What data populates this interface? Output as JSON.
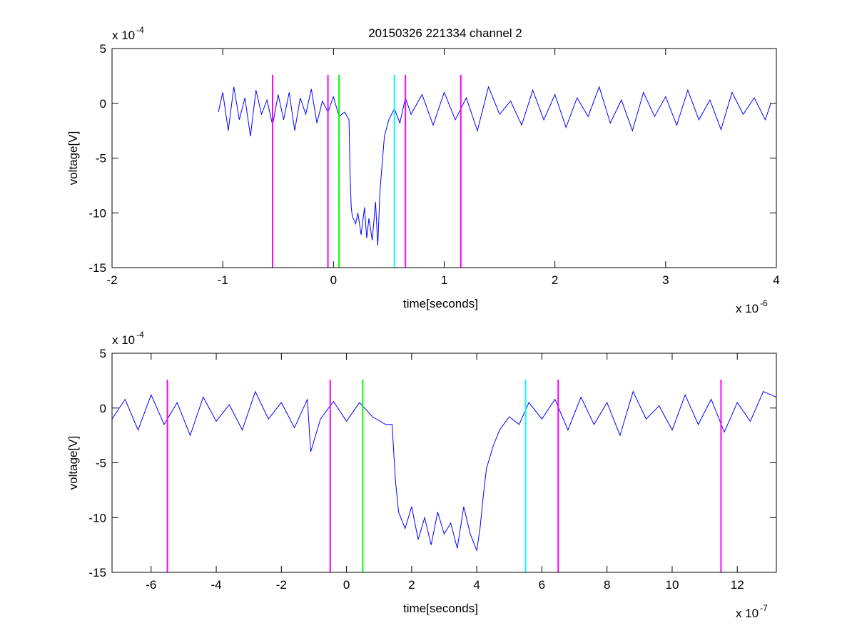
{
  "title": "20150326 221334 channel 2",
  "colors": {
    "trace": "#0000ff",
    "magenta": "#ff00ff",
    "green": "#00ff00",
    "cyan": "#00ffff",
    "axes": "#000000"
  },
  "chart_data": [
    {
      "type": "line",
      "title": "20150326 221334 channel 2",
      "xlabel": "time[seconds]",
      "ylabel": "voltage[V]",
      "x_exponent_label": "x 10",
      "x_exponent": "-6",
      "y_exponent_label": "x 10",
      "y_exponent": "-4",
      "xlim": [
        -2,
        4
      ],
      "ylim": [
        -15,
        5
      ],
      "xticks": [
        -2,
        -1,
        0,
        1,
        2,
        3,
        4
      ],
      "yticks": [
        5,
        0,
        -5,
        -10,
        -15
      ],
      "grid": false,
      "series": [
        {
          "x": [
            -1.04,
            -1.0,
            -0.95,
            -0.9,
            -0.85,
            -0.8,
            -0.75,
            -0.7,
            -0.65,
            -0.6,
            -0.55,
            -0.5,
            -0.45,
            -0.4,
            -0.35,
            -0.3,
            -0.25,
            -0.2,
            -0.15,
            -0.1,
            -0.05,
            0.0,
            0.05,
            0.1,
            0.14,
            0.15,
            0.16,
            0.17,
            0.2,
            0.22,
            0.25,
            0.28,
            0.3,
            0.32,
            0.35,
            0.38,
            0.4,
            0.42,
            0.44,
            0.46,
            0.5,
            0.55,
            0.6,
            0.65,
            0.7,
            0.8,
            0.9,
            1.0,
            1.1,
            1.2,
            1.3,
            1.4,
            1.5,
            1.6,
            1.7,
            1.8,
            1.9,
            2.0,
            2.1,
            2.2,
            2.3,
            2.4,
            2.5,
            2.6,
            2.7,
            2.8,
            2.9,
            3.0,
            3.1,
            3.2,
            3.3,
            3.4,
            3.5,
            3.6,
            3.7,
            3.8,
            3.9,
            3.95
          ],
          "y": [
            -0.8,
            1.0,
            -2.5,
            1.5,
            -1.5,
            0.5,
            -3.0,
            1.2,
            -1.0,
            0.3,
            -2.0,
            0.8,
            -1.5,
            1.0,
            -2.5,
            0.5,
            -1.0,
            1.3,
            -1.8,
            0.2,
            -0.8,
            0.6,
            -1.2,
            -0.8,
            -1.5,
            -6.5,
            -9.5,
            -10.3,
            -11.0,
            -10.0,
            -12.0,
            -9.5,
            -12.3,
            -10.5,
            -12.5,
            -9.0,
            -13.0,
            -8.0,
            -5.5,
            -3.0,
            -1.5,
            -0.5,
            -1.8,
            0.5,
            -1.0,
            0.8,
            -2.0,
            1.0,
            -1.5,
            0.5,
            -2.5,
            1.5,
            -1.0,
            0.2,
            -2.0,
            1.2,
            -1.5,
            0.8,
            -2.2,
            0.5,
            -1.2,
            1.5,
            -1.8,
            0.3,
            -2.5,
            1.0,
            -1.2,
            0.6,
            -2.0,
            1.2,
            -1.5,
            0.3,
            -2.4,
            1.0,
            -1.0,
            0.5,
            -1.5,
            0.0
          ]
        }
      ],
      "vlines": [
        {
          "x": -0.55,
          "color": "magenta"
        },
        {
          "x": -0.05,
          "color": "magenta"
        },
        {
          "x": 0.05,
          "color": "green"
        },
        {
          "x": 0.55,
          "color": "cyan"
        },
        {
          "x": 0.65,
          "color": "magenta"
        },
        {
          "x": 1.15,
          "color": "magenta"
        }
      ],
      "vline_range": [
        -15,
        2.6
      ]
    },
    {
      "type": "line",
      "xlabel": "time[seconds]",
      "ylabel": "voltage[V]",
      "x_exponent_label": "x 10",
      "x_exponent": "-7",
      "y_exponent_label": "x 10",
      "y_exponent": "-4",
      "xlim": [
        -7.2,
        13.2
      ],
      "ylim": [
        -15,
        5
      ],
      "xticks": [
        -6,
        -4,
        -2,
        0,
        2,
        4,
        6,
        8,
        10,
        12
      ],
      "yticks": [
        5,
        0,
        -5,
        -10,
        -15
      ],
      "grid": false,
      "series": [
        {
          "x": [
            -7.2,
            -6.8,
            -6.4,
            -6.0,
            -5.6,
            -5.2,
            -4.8,
            -4.4,
            -4.0,
            -3.6,
            -3.2,
            -2.8,
            -2.4,
            -2.0,
            -1.6,
            -1.2,
            -1.1,
            -0.8,
            -0.4,
            0.0,
            0.4,
            0.8,
            1.2,
            1.4,
            1.5,
            1.6,
            1.8,
            2.0,
            2.2,
            2.4,
            2.6,
            2.8,
            3.0,
            3.2,
            3.4,
            3.6,
            3.8,
            4.0,
            4.1,
            4.2,
            4.3,
            4.5,
            4.7,
            5.0,
            5.3,
            5.6,
            6.0,
            6.4,
            6.8,
            7.2,
            7.6,
            8.0,
            8.4,
            8.8,
            9.2,
            9.6,
            10.0,
            10.4,
            10.8,
            11.2,
            11.6,
            12.0,
            12.4,
            12.8,
            13.2
          ],
          "y": [
            -1.0,
            0.8,
            -2.0,
            1.2,
            -1.5,
            0.5,
            -2.5,
            1.0,
            -1.2,
            0.3,
            -2.0,
            1.5,
            -1.0,
            0.5,
            -1.8,
            0.8,
            -4.0,
            -1.0,
            0.6,
            -1.2,
            0.5,
            -0.8,
            -1.5,
            -1.5,
            -6.5,
            -9.5,
            -11.0,
            -9.0,
            -12.0,
            -10.0,
            -12.5,
            -9.5,
            -11.5,
            -10.5,
            -12.8,
            -9.0,
            -11.5,
            -13.0,
            -11.0,
            -8.0,
            -5.5,
            -3.5,
            -2.0,
            -0.8,
            -1.5,
            0.5,
            -1.0,
            0.8,
            -2.0,
            1.0,
            -1.5,
            0.5,
            -2.5,
            1.5,
            -1.0,
            0.2,
            -2.0,
            1.2,
            -1.5,
            0.8,
            -2.2,
            0.5,
            -1.2,
            1.5,
            1.0
          ]
        }
      ],
      "vlines": [
        {
          "x": -5.5,
          "color": "magenta"
        },
        {
          "x": -0.5,
          "color": "magenta"
        },
        {
          "x": 0.5,
          "color": "green"
        },
        {
          "x": 5.5,
          "color": "cyan"
        },
        {
          "x": 6.5,
          "color": "magenta"
        },
        {
          "x": 11.5,
          "color": "magenta"
        }
      ],
      "vline_range": [
        -15,
        2.6
      ]
    }
  ]
}
